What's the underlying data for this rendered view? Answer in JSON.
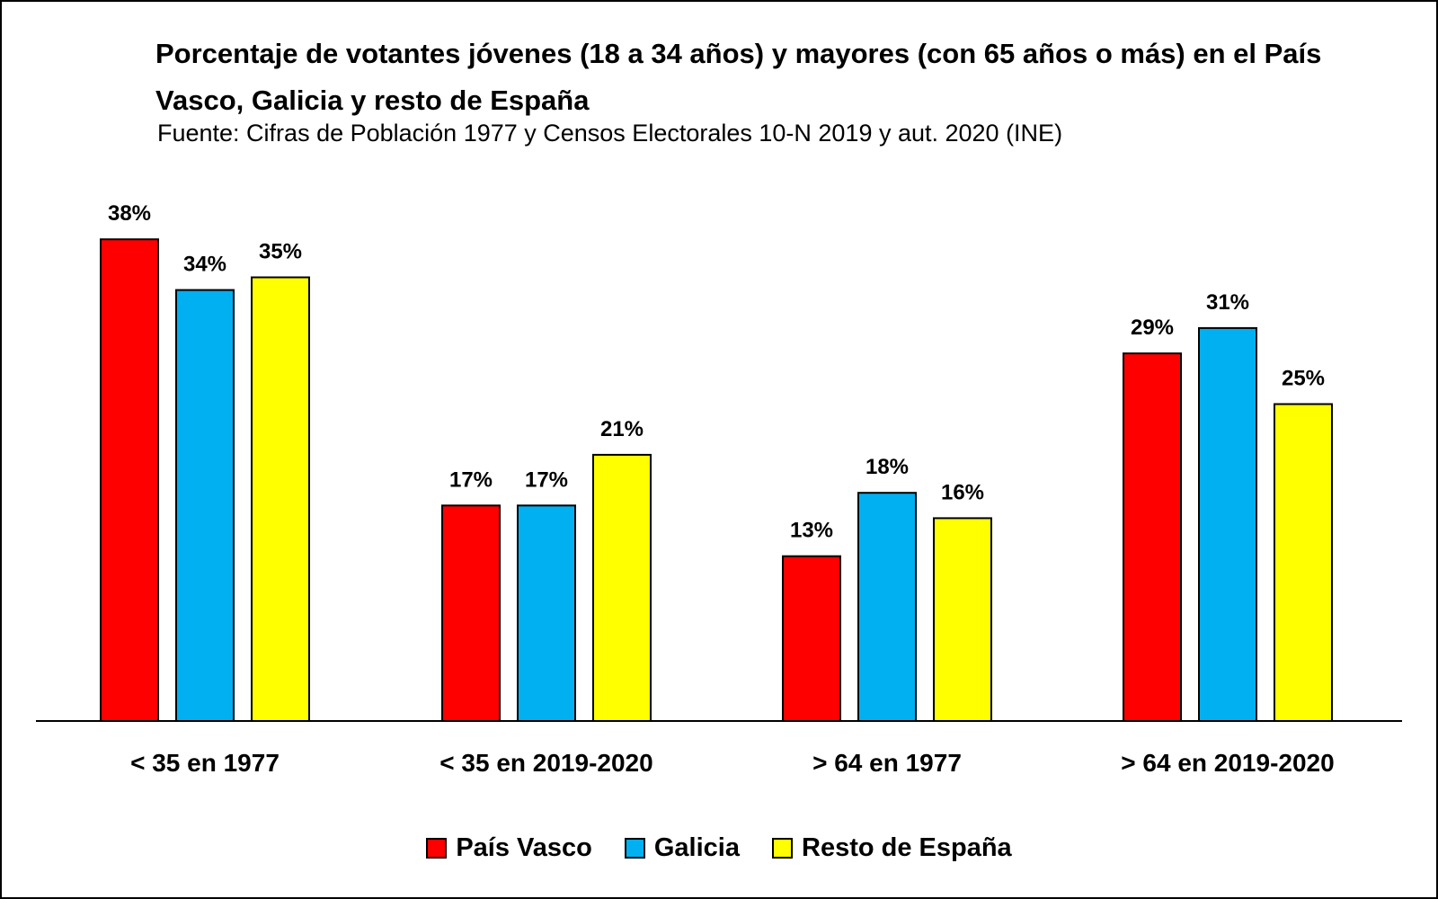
{
  "chart_data": {
    "type": "bar",
    "title": "Porcentaje de votantes jóvenes (18 a 34 años) y mayores (con 65 años o más) en el País Vasco, Galicia y resto de España",
    "subtitle": "Fuente: Cifras de Población 1977 y Censos Electorales 10-N 2019 y aut. 2020  (INE)",
    "categories": [
      "< 35 en 1977",
      "< 35 en 2019-2020",
      "> 64 en 1977",
      "> 64 en 2019-2020"
    ],
    "series": [
      {
        "name": "País Vasco",
        "color": "#ff0000",
        "values": [
          38,
          17,
          13,
          29
        ]
      },
      {
        "name": "Galicia",
        "color": "#00b0f0",
        "values": [
          34,
          17,
          18,
          31
        ]
      },
      {
        "name": "Resto de España",
        "color": "#ffff00",
        "values": [
          35,
          21,
          16,
          25
        ]
      }
    ],
    "data_labels": [
      [
        "38%",
        "17%",
        "13%",
        "29%"
      ],
      [
        "34%",
        "17%",
        "18%",
        "31%"
      ],
      [
        "35%",
        "21%",
        "16%",
        "25%"
      ]
    ],
    "value_unit": "%",
    "grid": false,
    "legend_position": "bottom"
  }
}
